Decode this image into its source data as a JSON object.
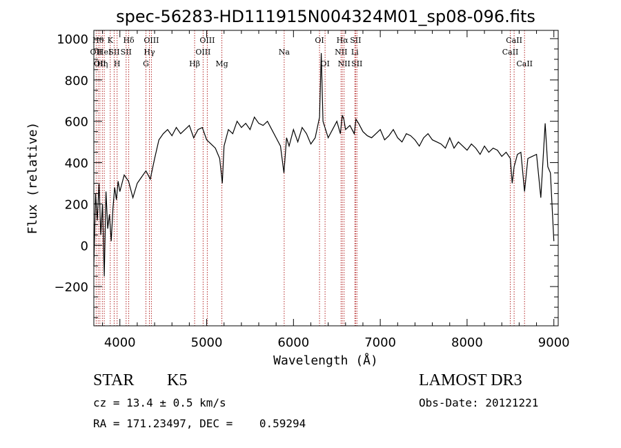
{
  "chart_data": {
    "type": "line",
    "title": "spec-56283-HD111915N004324M01_sp08-096.fits",
    "xlabel": "Wavelength (Å)",
    "ylabel": "Flux (relative)",
    "xlim": [
      3700,
      9050
    ],
    "ylim": [
      -390,
      1040
    ],
    "xticks": [
      4000,
      5000,
      6000,
      7000,
      8000,
      9000
    ],
    "yticks": [
      -200,
      0,
      200,
      400,
      600,
      800,
      1000
    ],
    "grid": false,
    "line_color": "#000000",
    "marker_color": "#b22222",
    "series": [
      {
        "x": [
          3700,
          3720,
          3740,
          3760,
          3780,
          3800,
          3820,
          3840,
          3860,
          3880,
          3900,
          3920,
          3940,
          3960,
          3980,
          4000,
          4050,
          4100,
          4150,
          4200,
          4250,
          4300,
          4350,
          4400,
          4450,
          4500,
          4550,
          4600,
          4650,
          4700,
          4750,
          4800,
          4850,
          4900,
          4950,
          5000,
          5050,
          5100,
          5150,
          5180,
          5200,
          5250,
          5300,
          5350,
          5400,
          5450,
          5500,
          5550,
          5600,
          5650,
          5700,
          5750,
          5800,
          5850,
          5890,
          5920,
          5950,
          6000,
          6050,
          6100,
          6150,
          6200,
          6250,
          6300,
          6320,
          6340,
          6400,
          6450,
          6500,
          6540,
          6563,
          6580,
          6600,
          6650,
          6700,
          6720,
          6750,
          6800,
          6850,
          6900,
          6950,
          7000,
          7050,
          7100,
          7150,
          7200,
          7250,
          7300,
          7350,
          7400,
          7450,
          7500,
          7550,
          7600,
          7650,
          7700,
          7750,
          7800,
          7850,
          7900,
          7950,
          8000,
          8050,
          8100,
          8150,
          8200,
          8250,
          8300,
          8350,
          8400,
          8450,
          8498,
          8520,
          8542,
          8580,
          8620,
          8662,
          8700,
          8750,
          8800,
          8850,
          8900,
          8930,
          8960,
          9000
        ],
        "values": [
          -100,
          250,
          120,
          300,
          50,
          200,
          -150,
          260,
          80,
          150,
          20,
          180,
          280,
          220,
          310,
          260,
          340,
          310,
          230,
          300,
          330,
          360,
          320,
          420,
          510,
          540,
          560,
          530,
          570,
          540,
          560,
          580,
          520,
          560,
          570,
          510,
          490,
          470,
          420,
          300,
          480,
          560,
          540,
          600,
          570,
          590,
          560,
          620,
          590,
          580,
          600,
          560,
          520,
          480,
          350,
          520,
          480,
          560,
          500,
          570,
          540,
          490,
          520,
          620,
          930,
          600,
          520,
          560,
          600,
          540,
          630,
          610,
          560,
          580,
          540,
          610,
          590,
          550,
          530,
          520,
          540,
          560,
          510,
          530,
          560,
          520,
          500,
          540,
          530,
          510,
          480,
          520,
          540,
          510,
          500,
          490,
          470,
          520,
          470,
          500,
          480,
          460,
          490,
          470,
          440,
          480,
          450,
          470,
          460,
          430,
          450,
          420,
          300,
          380,
          440,
          450,
          260,
          420,
          430,
          440,
          230,
          590,
          380,
          350,
          20
        ]
      }
    ],
    "lines": [
      {
        "x": 3727,
        "label": "OII",
        "row": 2
      },
      {
        "x": 3750,
        "label": "Hθ",
        "row": 1
      },
      {
        "x": 3770,
        "label": "OII",
        "row": 3
      },
      {
        "x": 3798,
        "label": "Hη",
        "row": 3
      },
      {
        "x": 3820,
        "label": "HeI",
        "row": 2
      },
      {
        "x": 3889,
        "label": "K",
        "row": 1
      },
      {
        "x": 3934,
        "label": "SII",
        "row": 2
      },
      {
        "x": 3968,
        "label": "H",
        "row": 3
      },
      {
        "x": 4102,
        "label": "Hδ",
        "row": 1
      },
      {
        "x": 4072,
        "label": "SII",
        "row": 2
      },
      {
        "x": 4300,
        "label": "G",
        "row": 3
      },
      {
        "x": 4340,
        "label": "Hγ",
        "row": 2
      },
      {
        "x": 4363,
        "label": "OIII",
        "row": 1
      },
      {
        "x": 4861,
        "label": "Hβ",
        "row": 3
      },
      {
        "x": 4959,
        "label": "OIII",
        "row": 2
      },
      {
        "x": 5007,
        "label": "OIII",
        "row": 1
      },
      {
        "x": 5175,
        "label": "Mg",
        "row": 3
      },
      {
        "x": 5893,
        "label": "Na",
        "row": 2
      },
      {
        "x": 6300,
        "label": "OI",
        "row": 1
      },
      {
        "x": 6364,
        "label": "OI",
        "row": 3
      },
      {
        "x": 6548,
        "label": "NII",
        "row": 2
      },
      {
        "x": 6563,
        "label": "Hα",
        "row": 1
      },
      {
        "x": 6583,
        "label": "NII",
        "row": 3
      },
      {
        "x": 6707,
        "label": "Li",
        "row": 2
      },
      {
        "x": 6716,
        "label": "SII",
        "row": 1
      },
      {
        "x": 6731,
        "label": "SII",
        "row": 3
      },
      {
        "x": 8498,
        "label": "CaII",
        "row": 2
      },
      {
        "x": 8542,
        "label": "CaII",
        "row": 1
      },
      {
        "x": 8662,
        "label": "CaII",
        "row": 3
      }
    ]
  },
  "info": {
    "class": "STAR",
    "subclass": "K5",
    "survey": "LAMOST DR3",
    "cz": "cz = 13.4 ± 0.5 km/s",
    "obs_date": "Obs-Date: 20121221",
    "radec": "RA = 171.23497, DEC =    0.59294"
  }
}
